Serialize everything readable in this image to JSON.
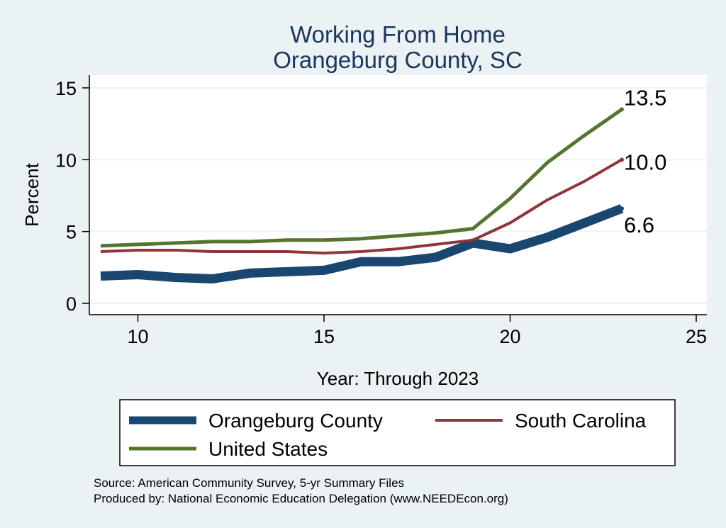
{
  "chart_data": {
    "type": "line",
    "title": [
      "Working From Home",
      "Orangeburg County, SC"
    ],
    "xlabel": "Year: Through 2023",
    "ylabel": "Percent",
    "xlim": [
      9,
      25
    ],
    "ylim": [
      0,
      15
    ],
    "x_ticks": [
      10,
      15,
      20,
      25
    ],
    "y_ticks": [
      0,
      5,
      10,
      15
    ],
    "grid": true,
    "legend_position": "bottom",
    "x": [
      9,
      10,
      11,
      12,
      13,
      14,
      15,
      16,
      17,
      18,
      19,
      20,
      21,
      22,
      23
    ],
    "series": [
      {
        "name": "Orangeburg County",
        "color": "#1a476f",
        "values": [
          1.9,
          2.0,
          1.8,
          1.7,
          2.1,
          2.2,
          2.3,
          2.9,
          2.9,
          3.2,
          4.2,
          3.8,
          4.6,
          5.6,
          6.6
        ],
        "end_label": "6.6"
      },
      {
        "name": "South Carolina",
        "color": "#90353b",
        "values": [
          3.6,
          3.7,
          3.7,
          3.6,
          3.6,
          3.6,
          3.5,
          3.6,
          3.8,
          4.1,
          4.4,
          5.6,
          7.2,
          8.5,
          10.0
        ],
        "end_label": "10.0"
      },
      {
        "name": "United States",
        "color": "#55752f",
        "values": [
          4.0,
          4.1,
          4.2,
          4.3,
          4.3,
          4.4,
          4.4,
          4.5,
          4.7,
          4.9,
          5.2,
          7.3,
          9.8,
          11.7,
          13.5
        ],
        "end_label": "13.5"
      }
    ],
    "notes": [
      "Source: American Community Survey, 5-yr Summary Files",
      "Produced by: National Economic Education Delegation (www.NEEDEcon.org)"
    ]
  }
}
